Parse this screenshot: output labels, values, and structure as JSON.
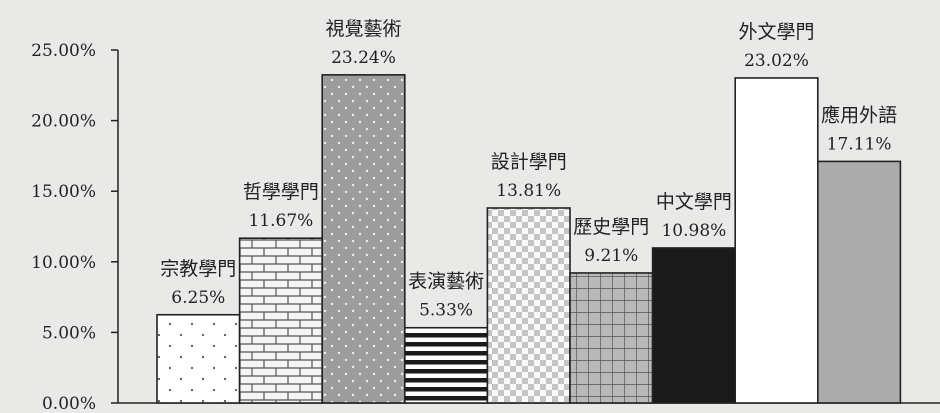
{
  "chart_data": {
    "type": "bar",
    "categories": [
      "宗教學門",
      "哲學學門",
      "視覺藝術",
      "表演藝術",
      "設計學門",
      "歷史學門",
      "中文學門",
      "外文學門",
      "應用外語"
    ],
    "values": [
      6.25,
      11.67,
      23.24,
      5.33,
      13.81,
      9.21,
      10.98,
      23.02,
      17.11
    ],
    "value_labels": [
      "6.25%",
      "11.67%",
      "23.24%",
      "5.33%",
      "13.81%",
      "9.21%",
      "10.98%",
      "23.02%",
      "17.11%"
    ],
    "patterns": [
      "dots-sparse",
      "brick",
      "dots-dense-gray",
      "horizontal-stripes",
      "checker",
      "grid",
      "solid-black",
      "white",
      "solid-gray"
    ],
    "y_ticks": [
      "0.00%",
      "5.00%",
      "10.00%",
      "15.00%",
      "20.00%",
      "25.00%"
    ],
    "ylim": [
      0,
      25
    ],
    "grid": false,
    "legend": "none",
    "title": "",
    "xlabel": "",
    "ylabel": ""
  },
  "colors": {
    "background": "#e9e9e7",
    "axis": "#222222",
    "bar_outline": "#222222",
    "gray_fill": "#a9a9a9",
    "dark_fill": "#1a1a1a"
  }
}
